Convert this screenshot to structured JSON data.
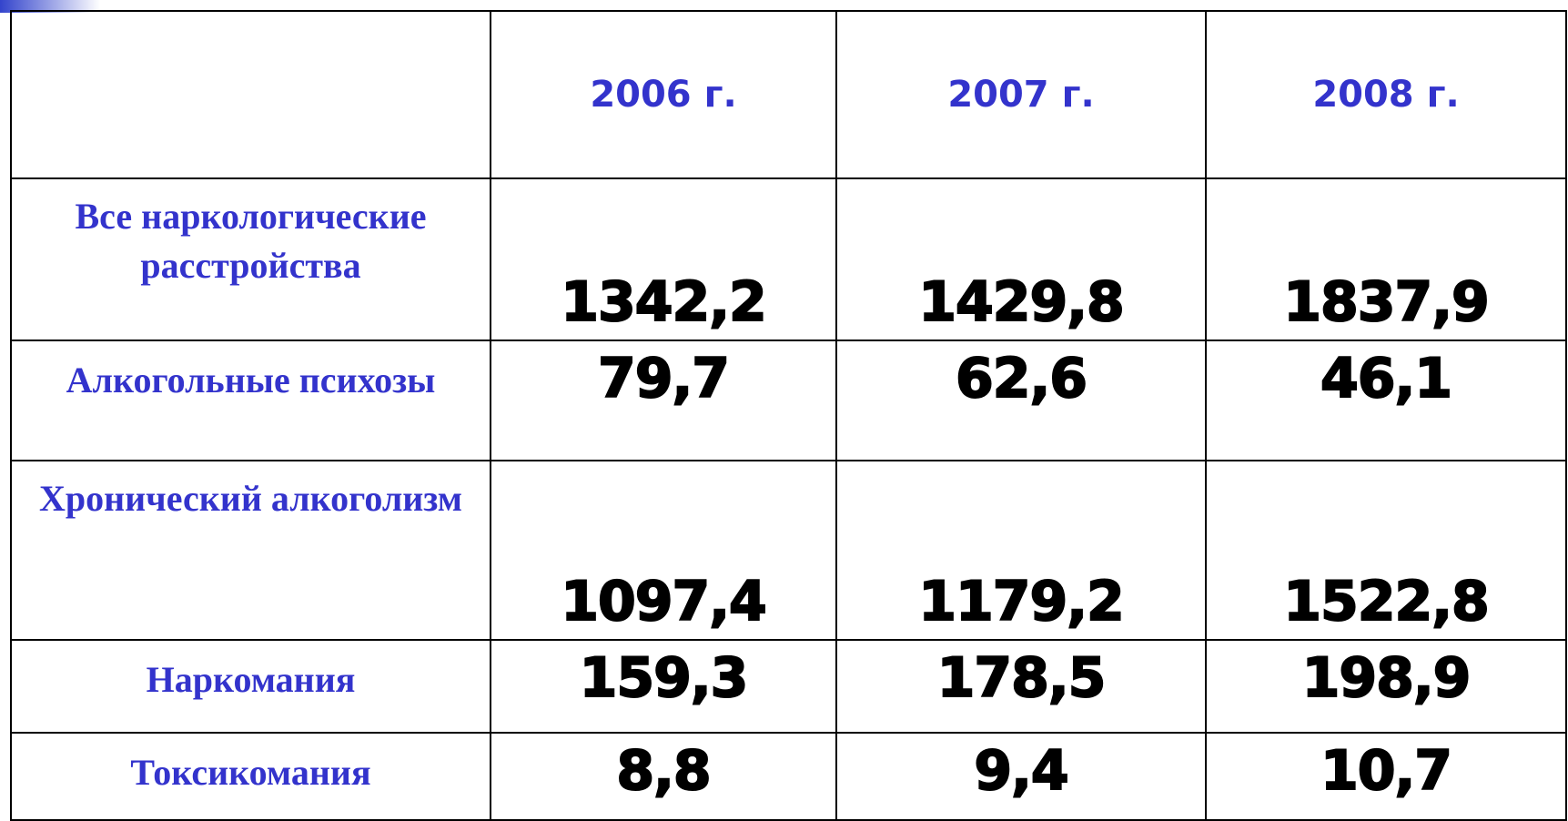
{
  "table": {
    "header": [
      "2006 г.",
      "2007 г.",
      "2008 г."
    ],
    "rows": [
      {
        "label": "Все наркологические расстройства",
        "values": [
          "1342,2",
          "1429,8",
          "1837,9"
        ]
      },
      {
        "label": "Алкогольные психозы",
        "values": [
          "79,7",
          "62,6",
          "46,1"
        ]
      },
      {
        "label": "Хронический алкоголизм",
        "values": [
          "1097,4",
          "1179,2",
          "1522,8"
        ]
      },
      {
        "label": "Наркомания",
        "values": [
          "159,3",
          "178,5",
          "198,9"
        ]
      },
      {
        "label": "Токсикомания",
        "values": [
          "8,8",
          "9,4",
          "10,7"
        ]
      }
    ]
  }
}
